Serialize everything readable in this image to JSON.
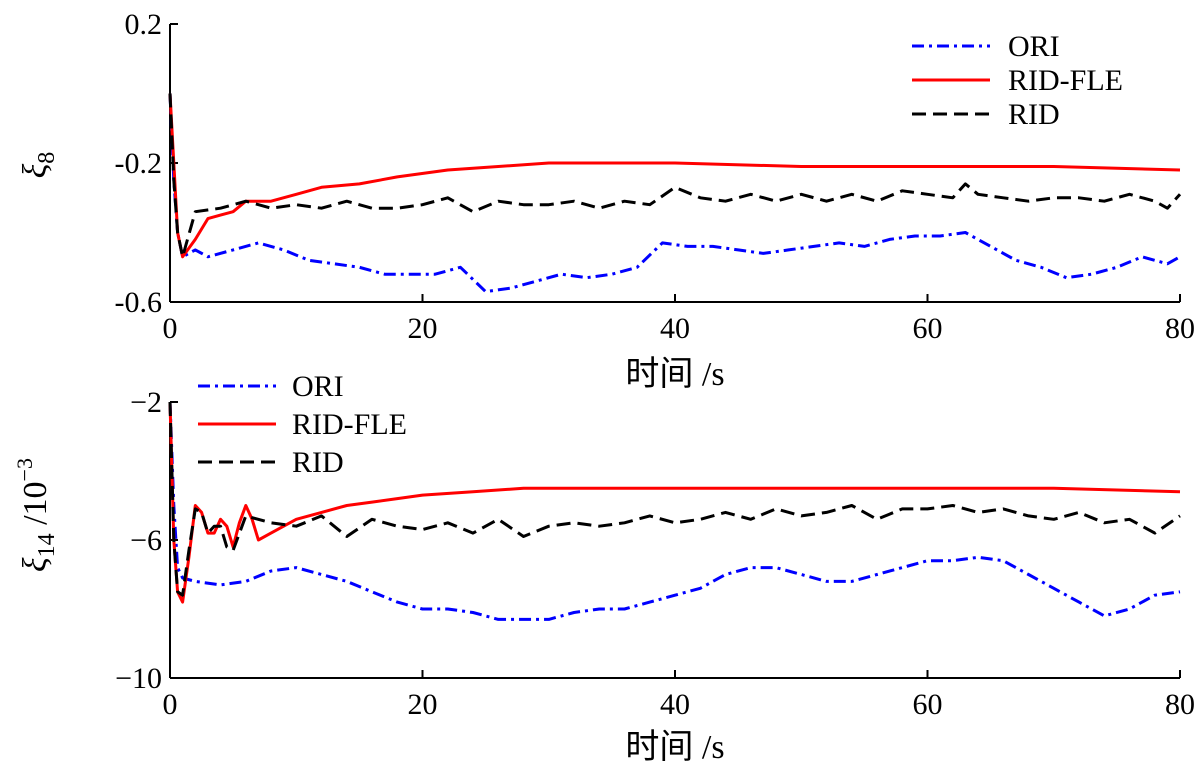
{
  "chart_data": [
    {
      "type": "line",
      "ylabel_symbol": "ξ",
      "ylabel_sub": "8",
      "xlabel": "时间 /s",
      "xlim": [
        0,
        80
      ],
      "ylim": [
        -0.6,
        0.2
      ],
      "xticks": [
        "0",
        "20",
        "40",
        "60",
        "80"
      ],
      "yticks": [
        "0.2",
        "-0.2",
        "-0.6"
      ],
      "legend_position": "top-right",
      "series": [
        {
          "name": "ORI",
          "color": "#0000ff",
          "style": "dash-dot",
          "x": [
            0,
            0.3,
            0.6,
            1,
            2,
            3,
            5,
            7,
            9,
            11,
            13,
            15,
            17,
            19,
            21,
            23,
            25,
            27,
            29,
            31,
            33,
            35,
            37,
            39,
            41,
            43,
            45,
            47,
            49,
            51,
            53,
            55,
            57,
            59,
            61,
            63,
            65,
            67,
            69,
            71,
            73,
            75,
            77,
            79,
            80
          ],
          "y": [
            0.0,
            -0.25,
            -0.4,
            -0.47,
            -0.45,
            -0.47,
            -0.45,
            -0.43,
            -0.45,
            -0.48,
            -0.49,
            -0.5,
            -0.52,
            -0.52,
            -0.52,
            -0.5,
            -0.57,
            -0.56,
            -0.54,
            -0.52,
            -0.53,
            -0.52,
            -0.5,
            -0.43,
            -0.44,
            -0.44,
            -0.45,
            -0.46,
            -0.45,
            -0.44,
            -0.43,
            -0.44,
            -0.42,
            -0.41,
            -0.41,
            -0.4,
            -0.44,
            -0.48,
            -0.5,
            -0.53,
            -0.52,
            -0.5,
            -0.47,
            -0.49,
            -0.47
          ]
        },
        {
          "name": "RID-FLE",
          "color": "#ff0000",
          "style": "solid",
          "x": [
            0,
            0.3,
            0.6,
            1,
            2,
            3,
            4,
            5,
            6,
            8,
            10,
            12,
            15,
            18,
            22,
            26,
            30,
            40,
            50,
            60,
            70,
            80
          ],
          "y": [
            0.0,
            -0.2,
            -0.4,
            -0.47,
            -0.42,
            -0.36,
            -0.35,
            -0.34,
            -0.31,
            -0.31,
            -0.29,
            -0.27,
            -0.26,
            -0.24,
            -0.22,
            -0.21,
            -0.2,
            -0.2,
            -0.21,
            -0.21,
            -0.21,
            -0.22
          ]
        },
        {
          "name": "RID",
          "color": "#000000",
          "style": "dashed",
          "x": [
            0,
            0.3,
            0.6,
            1,
            2,
            4,
            6,
            8,
            10,
            12,
            14,
            16,
            18,
            20,
            22,
            24,
            26,
            28,
            30,
            32,
            34,
            36,
            38,
            40,
            42,
            44,
            46,
            48,
            50,
            52,
            54,
            56,
            58,
            60,
            62,
            63,
            64,
            66,
            68,
            70,
            72,
            74,
            76,
            78,
            79,
            80
          ],
          "y": [
            0.0,
            -0.25,
            -0.4,
            -0.47,
            -0.34,
            -0.33,
            -0.31,
            -0.33,
            -0.32,
            -0.33,
            -0.31,
            -0.33,
            -0.33,
            -0.32,
            -0.3,
            -0.34,
            -0.31,
            -0.32,
            -0.32,
            -0.31,
            -0.33,
            -0.31,
            -0.32,
            -0.27,
            -0.3,
            -0.31,
            -0.29,
            -0.31,
            -0.29,
            -0.31,
            -0.29,
            -0.31,
            -0.28,
            -0.29,
            -0.3,
            -0.26,
            -0.29,
            -0.3,
            -0.31,
            -0.3,
            -0.3,
            -0.31,
            -0.29,
            -0.31,
            -0.33,
            -0.29
          ]
        }
      ]
    },
    {
      "type": "line",
      "ylabel_symbol": "ξ",
      "ylabel_sub": "14",
      "ylabel_suffix": "/10",
      "ylabel_sup": "−3",
      "xlabel": "时间 /s",
      "xlim": [
        0,
        80
      ],
      "ylim": [
        -10,
        -2
      ],
      "xticks": [
        "0",
        "20",
        "40",
        "60",
        "80"
      ],
      "yticks": [
        "−2",
        "−6",
        "−10"
      ],
      "legend_position": "top-left",
      "series": [
        {
          "name": "ORI",
          "color": "#0000ff",
          "style": "dash-dot",
          "x": [
            0,
            0.3,
            0.6,
            1,
            2,
            4,
            6,
            8,
            10,
            12,
            14,
            16,
            18,
            20,
            22,
            24,
            26,
            28,
            30,
            32,
            34,
            36,
            38,
            40,
            42,
            44,
            46,
            48,
            50,
            52,
            54,
            56,
            58,
            60,
            62,
            64,
            66,
            68,
            70,
            72,
            74,
            76,
            78,
            80
          ],
          "y": [
            -2.0,
            -5.0,
            -6.8,
            -7.1,
            -7.2,
            -7.3,
            -7.2,
            -6.9,
            -6.8,
            -7.0,
            -7.2,
            -7.5,
            -7.8,
            -8.0,
            -8.0,
            -8.1,
            -8.3,
            -8.3,
            -8.3,
            -8.1,
            -8.0,
            -8.0,
            -7.8,
            -7.6,
            -7.4,
            -7.0,
            -6.8,
            -6.8,
            -7.0,
            -7.2,
            -7.2,
            -7.0,
            -6.8,
            -6.6,
            -6.6,
            -6.5,
            -6.6,
            -7.0,
            -7.4,
            -7.8,
            -8.2,
            -8.0,
            -7.6,
            -7.5
          ]
        },
        {
          "name": "RID-FLE",
          "color": "#ff0000",
          "style": "solid",
          "x": [
            0,
            0.3,
            0.6,
            1,
            1.5,
            2,
            2.5,
            3,
            3.5,
            4,
            4.5,
            5,
            5.5,
            6,
            6.5,
            7,
            8,
            9,
            10,
            12,
            14,
            16,
            18,
            20,
            24,
            28,
            32,
            40,
            50,
            60,
            70,
            80
          ],
          "y": [
            -2.0,
            -6.0,
            -7.5,
            -7.8,
            -6.5,
            -5.0,
            -5.2,
            -5.8,
            -5.8,
            -5.4,
            -5.6,
            -6.2,
            -5.5,
            -5.0,
            -5.4,
            -6.0,
            -5.8,
            -5.6,
            -5.4,
            -5.2,
            -5.0,
            -4.9,
            -4.8,
            -4.7,
            -4.6,
            -4.5,
            -4.5,
            -4.5,
            -4.5,
            -4.5,
            -4.5,
            -4.6
          ]
        },
        {
          "name": "RID",
          "color": "#000000",
          "style": "dashed",
          "x": [
            0,
            0.3,
            0.6,
            1,
            1.5,
            2,
            2.5,
            3,
            3.5,
            4,
            4.5,
            5,
            6,
            8,
            10,
            12,
            14,
            16,
            18,
            20,
            22,
            24,
            26,
            28,
            30,
            32,
            34,
            36,
            38,
            40,
            42,
            44,
            46,
            48,
            50,
            52,
            54,
            56,
            58,
            60,
            62,
            64,
            66,
            68,
            70,
            72,
            74,
            76,
            78,
            80
          ],
          "y": [
            -2.0,
            -6.0,
            -7.5,
            -7.6,
            -6.3,
            -5.1,
            -5.2,
            -5.8,
            -5.6,
            -5.6,
            -6.2,
            -6.3,
            -5.3,
            -5.5,
            -5.6,
            -5.3,
            -5.9,
            -5.4,
            -5.6,
            -5.7,
            -5.5,
            -5.8,
            -5.4,
            -5.9,
            -5.6,
            -5.5,
            -5.6,
            -5.5,
            -5.3,
            -5.5,
            -5.4,
            -5.2,
            -5.4,
            -5.1,
            -5.3,
            -5.2,
            -5.0,
            -5.4,
            -5.1,
            -5.1,
            -5.0,
            -5.2,
            -5.1,
            -5.3,
            -5.4,
            -5.2,
            -5.5,
            -5.4,
            -5.8,
            -5.3
          ]
        }
      ]
    }
  ]
}
